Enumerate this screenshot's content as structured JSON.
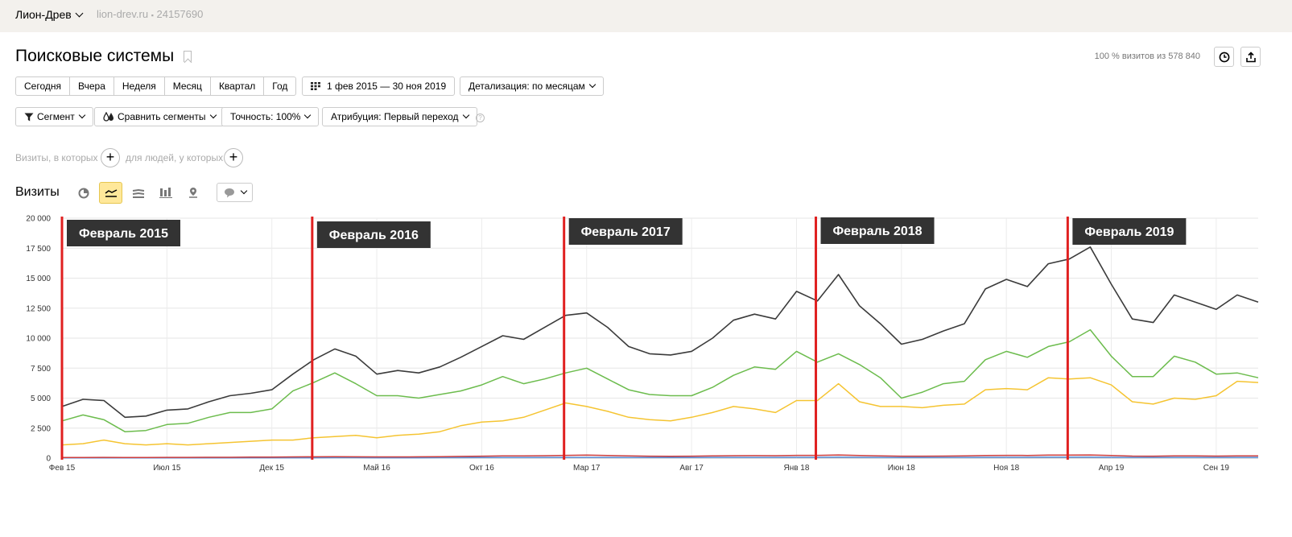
{
  "header": {
    "site_name": "Лион-Древ",
    "site_url": "lion-drev.ru",
    "counter_id": "24157690"
  },
  "page_title": "Поисковые системы",
  "visits_total": "100 % визитов из 578 840",
  "periods": [
    "Сегодня",
    "Вчера",
    "Неделя",
    "Месяц",
    "Квартал",
    "Год"
  ],
  "date_range": "1 фев 2015 — 30 ноя 2019",
  "detail": "Детализация: по месяцам",
  "segment": "Сегмент",
  "compare": "Сравнить сегменты",
  "accuracy": "Точность: 100%",
  "attribution": "Атрибуция: Первый переход",
  "filter_visits": "Визиты, в которых",
  "filter_people": "для людей, у которых",
  "metric": "Визиты",
  "icons": {
    "counter": "counter-icon",
    "calendar": "calendar-grid-icon",
    "history": "clock-icon",
    "export": "export-icon",
    "segment": "funnel-icon",
    "compare": "drops-icon",
    "help": "help-icon",
    "chart_types": [
      "pie-chart-icon",
      "line-chart-icon",
      "area-chart-icon",
      "bar-chart-icon",
      "map-chart-icon"
    ],
    "comment": "comment-icon"
  },
  "colors": {
    "total": "#3b3b3b",
    "green": "#6cbc4d",
    "yellow": "#f5c431",
    "red": "#cc3e3e",
    "blue": "#5a8fd8",
    "annotation_line": "#e02020",
    "annotation_bg": "#333333"
  },
  "chart_data": {
    "type": "line",
    "title": "",
    "xlabel": "",
    "ylabel": "",
    "ylim": [
      0,
      20000
    ],
    "grid": true,
    "y_ticks": [
      "0",
      "2 500",
      "5 000",
      "7 500",
      "10 000",
      "12 500",
      "15 000",
      "17 500",
      "20 000"
    ],
    "x_tick_labels": [
      {
        "label": "Фев 15",
        "month": "2015-02"
      },
      {
        "label": "Июл 15",
        "month": "2015-07"
      },
      {
        "label": "Дек 15",
        "month": "2015-12"
      },
      {
        "label": "Май 16",
        "month": "2016-05"
      },
      {
        "label": "Окт 16",
        "month": "2016-10"
      },
      {
        "label": "Мар 17",
        "month": "2017-03"
      },
      {
        "label": "Авг 17",
        "month": "2017-08"
      },
      {
        "label": "Янв 18",
        "month": "2018-01"
      },
      {
        "label": "Июн 18",
        "month": "2018-06"
      },
      {
        "label": "Ноя 18",
        "month": "2018-11"
      },
      {
        "label": "Апр 19",
        "month": "2019-04"
      },
      {
        "label": "Сен 19",
        "month": "2019-09"
      }
    ],
    "x": [
      "2015-02",
      "2015-03",
      "2015-04",
      "2015-05",
      "2015-06",
      "2015-07",
      "2015-08",
      "2015-09",
      "2015-10",
      "2015-11",
      "2015-12",
      "2016-01",
      "2016-02",
      "2016-03",
      "2016-04",
      "2016-05",
      "2016-06",
      "2016-07",
      "2016-08",
      "2016-09",
      "2016-10",
      "2016-11",
      "2016-12",
      "2017-01",
      "2017-02",
      "2017-03",
      "2017-04",
      "2017-05",
      "2017-06",
      "2017-07",
      "2017-08",
      "2017-09",
      "2017-10",
      "2017-11",
      "2017-12",
      "2018-01",
      "2018-02",
      "2018-03",
      "2018-04",
      "2018-05",
      "2018-06",
      "2018-07",
      "2018-08",
      "2018-09",
      "2018-10",
      "2018-11",
      "2018-12",
      "2019-01",
      "2019-02",
      "2019-03",
      "2019-04",
      "2019-05",
      "2019-06",
      "2019-07",
      "2019-08",
      "2019-09",
      "2019-10",
      "2019-11"
    ],
    "series": [
      {
        "key": "total",
        "values": [
          4300,
          4900,
          4800,
          3400,
          3500,
          4000,
          4100,
          4700,
          5200,
          5400,
          5700,
          7000,
          8200,
          9100,
          8500,
          7000,
          7300,
          7100,
          7600,
          8400,
          9300,
          10200,
          9900,
          10900,
          11900,
          12100,
          10900,
          9300,
          8700,
          8600,
          8900,
          10000,
          11500,
          12000,
          11600,
          13900,
          13100,
          15300,
          12700,
          11200,
          9500,
          9900,
          10600,
          11200,
          14100,
          14900,
          14300,
          16200,
          16600,
          17600,
          14500,
          11600,
          11300,
          13600,
          13000,
          12400,
          13600,
          13000
        ]
      },
      {
        "key": "green",
        "values": [
          3100,
          3600,
          3200,
          2200,
          2300,
          2800,
          2900,
          3400,
          3800,
          3800,
          4100,
          5600,
          6300,
          7100,
          6200,
          5200,
          5200,
          5000,
          5300,
          5600,
          6100,
          6800,
          6200,
          6600,
          7100,
          7500,
          6600,
          5700,
          5300,
          5200,
          5200,
          5900,
          6900,
          7600,
          7400,
          8900,
          8000,
          8700,
          7800,
          6700,
          5000,
          5500,
          6200,
          6400,
          8200,
          8900,
          8400,
          9300,
          9700,
          10700,
          8500,
          6800,
          6800,
          8500,
          8000,
          7000,
          7100,
          6700
        ]
      },
      {
        "key": "yellow",
        "values": [
          1100,
          1200,
          1500,
          1200,
          1100,
          1200,
          1100,
          1200,
          1300,
          1400,
          1500,
          1500,
          1700,
          1800,
          1900,
          1700,
          1900,
          2000,
          2200,
          2700,
          3000,
          3100,
          3400,
          4000,
          4600,
          4300,
          3900,
          3400,
          3200,
          3100,
          3400,
          3800,
          4300,
          4100,
          3800,
          4800,
          4800,
          6200,
          4700,
          4300,
          4300,
          4200,
          4400,
          4500,
          5700,
          5800,
          5700,
          6700,
          6600,
          6700,
          6100,
          4700,
          4500,
          5000,
          4900,
          5200,
          6400,
          6300
        ]
      },
      {
        "key": "red",
        "values": [
          50,
          50,
          60,
          50,
          50,
          60,
          60,
          70,
          70,
          80,
          90,
          100,
          110,
          120,
          110,
          100,
          100,
          110,
          120,
          140,
          160,
          180,
          190,
          200,
          230,
          250,
          220,
          180,
          160,
          150,
          160,
          180,
          200,
          210,
          200,
          230,
          230,
          260,
          220,
          190,
          160,
          160,
          170,
          180,
          220,
          230,
          220,
          250,
          250,
          260,
          220,
          170,
          160,
          190,
          180,
          170,
          190,
          180
        ]
      },
      {
        "key": "blue",
        "values": [
          20,
          20,
          20,
          20,
          20,
          20,
          20,
          20,
          20,
          30,
          30,
          30,
          30,
          40,
          40,
          30,
          30,
          30,
          40,
          40,
          50,
          50,
          50,
          60,
          60,
          60,
          60,
          50,
          50,
          50,
          50,
          60,
          60,
          60,
          60,
          70,
          70,
          80,
          70,
          60,
          50,
          50,
          60,
          60,
          70,
          70,
          70,
          80,
          80,
          80,
          70,
          60,
          60,
          60,
          60,
          60,
          60,
          60
        ]
      }
    ],
    "annotations": [
      {
        "label": "Февраль 2015",
        "month": "2015-02"
      },
      {
        "label": "Февраль 2016",
        "month": "2016-02"
      },
      {
        "label": "Февраль 2017",
        "month": "2017-02"
      },
      {
        "label": "Февраль 2018",
        "month": "2018-02"
      },
      {
        "label": "Февраль 2019",
        "month": "2019-02"
      }
    ]
  }
}
